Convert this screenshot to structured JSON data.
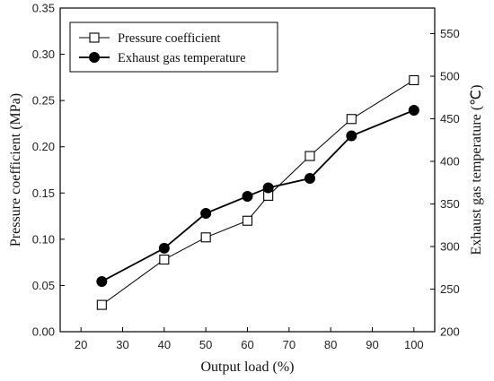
{
  "chart_data": {
    "type": "line",
    "xlabel": "Output load (%)",
    "ylabel": "Pressure coefficient (MPa)",
    "y2label": "Exhaust gas temperature (℃)",
    "xlim": [
      15,
      105
    ],
    "ylim": [
      0,
      0.35
    ],
    "y2lim": [
      200,
      580
    ],
    "xticks": [
      20,
      30,
      40,
      50,
      60,
      70,
      80,
      90,
      100
    ],
    "yticks": [
      "0.00",
      "0.05",
      "0.10",
      "0.15",
      "0.20",
      "0.25",
      "0.30",
      "0.35"
    ],
    "y2ticks": [
      200,
      250,
      300,
      350,
      400,
      450,
      500,
      550
    ],
    "legend_position": "top-left",
    "grid": false,
    "series": [
      {
        "name": "Pressure coefficient",
        "axis": "left",
        "marker": "open-square",
        "color": "#000000",
        "points": [
          [
            25,
            0.029
          ],
          [
            40,
            0.078
          ],
          [
            50,
            0.102
          ],
          [
            60,
            0.12
          ],
          [
            65,
            0.147
          ],
          [
            75,
            0.19
          ],
          [
            85,
            0.23
          ],
          [
            100,
            0.272
          ]
        ]
      },
      {
        "name": "Exhaust gas temperature",
        "axis": "right",
        "marker": "filled-circle",
        "color": "#000000",
        "points": [
          [
            25,
            259
          ],
          [
            40,
            298
          ],
          [
            50,
            339
          ],
          [
            60,
            359
          ],
          [
            65,
            369
          ],
          [
            75,
            380
          ],
          [
            85,
            430
          ],
          [
            100,
            460
          ]
        ]
      }
    ]
  }
}
